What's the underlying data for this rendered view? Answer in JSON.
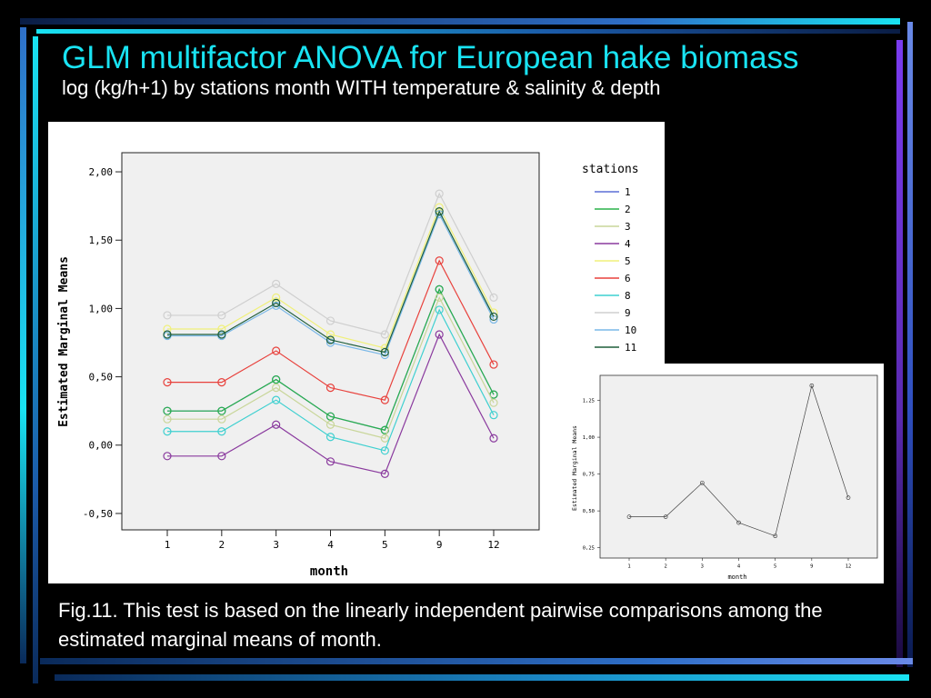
{
  "slide": {
    "title": "GLM multifactor ANOVA for European hake biomass",
    "subtitle": "log (kg/h+1) by stations month WITH temperature & salinity & depth",
    "caption": "Fig.11. This test is based on the linearly independent pairwise comparisons among the estimated marginal means of month.",
    "colors": {
      "background": "#000000",
      "title": "#19e3f2",
      "text": "#ffffff",
      "frame_gradient": [
        "#0a2a5a",
        "#2f6fc8",
        "#19e3f2"
      ]
    }
  },
  "chart_data": [
    {
      "type": "line",
      "xlabel": "month",
      "ylabel": "Estimated Marginal Means",
      "categories": [
        "1",
        "2",
        "3",
        "4",
        "5",
        "9",
        "12"
      ],
      "yticks": [
        "-0,50",
        "0,00",
        "0,50",
        "1,00",
        "1,50",
        "2,00"
      ],
      "ylim": [
        -0.62,
        2.14
      ],
      "legend_title": "stations",
      "legend_position": "right",
      "grid": false,
      "marker": "circle",
      "series": [
        {
          "name": "1",
          "color": "#5b6fd6",
          "values": [
            0.25,
            0.25,
            0.48,
            0.21,
            0.11,
            1.14,
            0.37
          ]
        },
        {
          "name": "2",
          "color": "#2ab24a",
          "values": [
            0.25,
            0.25,
            0.48,
            0.21,
            0.11,
            1.14,
            0.37
          ]
        },
        {
          "name": "3",
          "color": "#c9d69a",
          "values": [
            0.19,
            0.19,
            0.42,
            0.15,
            0.05,
            1.08,
            0.31
          ]
        },
        {
          "name": "4",
          "color": "#8a3a9e",
          "values": [
            -0.08,
            -0.08,
            0.15,
            -0.12,
            -0.21,
            0.81,
            0.05
          ]
        },
        {
          "name": "5",
          "color": "#f0f07a",
          "values": [
            0.85,
            0.85,
            1.08,
            0.81,
            0.71,
            1.74,
            0.97
          ]
        },
        {
          "name": "6",
          "color": "#e8413c",
          "values": [
            0.46,
            0.46,
            0.69,
            0.42,
            0.33,
            1.35,
            0.59
          ]
        },
        {
          "name": "8",
          "color": "#3fd0d0",
          "values": [
            0.1,
            0.1,
            0.33,
            0.06,
            -0.04,
            0.99,
            0.22
          ]
        },
        {
          "name": "9",
          "color": "#cfcfcf",
          "values": [
            0.95,
            0.95,
            1.18,
            0.91,
            0.81,
            1.84,
            1.08
          ]
        },
        {
          "name": "10",
          "color": "#7ab8e8",
          "values": [
            0.8,
            0.8,
            1.02,
            0.75,
            0.66,
            1.69,
            0.92
          ]
        },
        {
          "name": "11",
          "color": "#1f5e3a",
          "values": [
            0.81,
            0.81,
            1.04,
            0.77,
            0.68,
            1.71,
            0.94
          ]
        }
      ]
    },
    {
      "type": "line",
      "xlabel": "month",
      "ylabel": "Estimated Marginal Means",
      "categories": [
        "1",
        "2",
        "3",
        "4",
        "5",
        "9",
        "12"
      ],
      "yticks": [
        "0,25",
        "0,50",
        "0,75",
        "1,00",
        "1,25"
      ],
      "ylim": [
        0.18,
        1.42
      ],
      "grid": false,
      "marker": "circle",
      "series": [
        {
          "color": "#444444",
          "values": [
            0.46,
            0.46,
            0.69,
            0.42,
            0.33,
            1.35,
            0.59
          ]
        }
      ]
    }
  ]
}
